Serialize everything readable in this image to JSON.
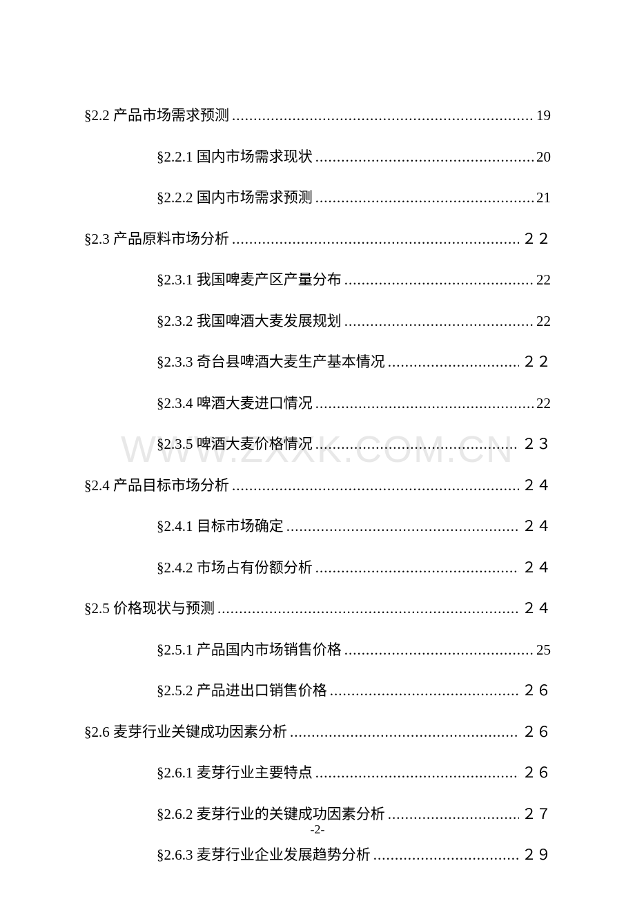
{
  "watermark": "WWW.ZXXK.COM.CN",
  "page_number": "-2-",
  "toc": [
    {
      "level": 2,
      "section": "§2.2",
      "title": "产品市场需求预测",
      "page": "19",
      "wide": false
    },
    {
      "level": 3,
      "section": "§2.2.1",
      "title": "国内市场需求现状",
      "page": "20",
      "wide": false
    },
    {
      "level": 3,
      "section": "§2.2.2",
      "title": "国内市场需求预测",
      "page": "21",
      "wide": false
    },
    {
      "level": 2,
      "section": "§2.3",
      "title": "产品原料市场分析",
      "page": "２２",
      "wide": false
    },
    {
      "level": 3,
      "section": "§2.3.1",
      "title": "我国啤麦产区产量分布",
      "page": "22",
      "wide": false
    },
    {
      "level": 3,
      "section": "§2.3.2",
      "title": "我国啤酒大麦发展规划",
      "page": "22",
      "wide": false
    },
    {
      "level": 3,
      "section": "§2.3.3",
      "title": "奇台县啤酒大麦生产基本情况",
      "page": "２２",
      "wide": false
    },
    {
      "level": 3,
      "section": "§2.3.4",
      "title": "啤酒大麦进口情况",
      "page": "22",
      "wide": false
    },
    {
      "level": 3,
      "section": "§2.3.5",
      "title": "啤酒大麦价格情况",
      "page": "２３",
      "wide": false
    },
    {
      "level": 2,
      "section": "§2.4",
      "title": "产品目标市场分析",
      "page": "２４",
      "wide": false
    },
    {
      "level": 3,
      "section": "§2.4.1",
      "title": "目标市场确定",
      "page": "２４",
      "wide": false
    },
    {
      "level": 3,
      "section": "§2.4.2",
      "title": "市场占有份额分析",
      "page": "２４",
      "wide": false
    },
    {
      "level": 2,
      "section": "§2.5",
      "title": "价格现状与预测",
      "page": "２４",
      "wide": false
    },
    {
      "level": 3,
      "section": "§2.5.1",
      "title": "产品国内市场销售价格",
      "page": "25",
      "wide": false
    },
    {
      "level": 3,
      "section": "§2.5.2",
      "title": "产品进出口销售价格",
      "page": "２６",
      "wide": false
    },
    {
      "level": 2,
      "section": "§2.6",
      "title": "麦芽行业关键成功因素分析",
      "page": "２６",
      "wide": false
    },
    {
      "level": 3,
      "section": "§2.6.1",
      "title": "麦芽行业主要特点",
      "page": "２６",
      "wide": false
    },
    {
      "level": 3,
      "section": "§2.6.2",
      "title": "麦芽行业的关键成功因素分析",
      "page": "２７",
      "wide": false
    },
    {
      "level": 3,
      "section": "§2.6.3",
      "title": "麦芽行业企业发展趋势分析",
      "page": "２９",
      "wide": false
    }
  ]
}
